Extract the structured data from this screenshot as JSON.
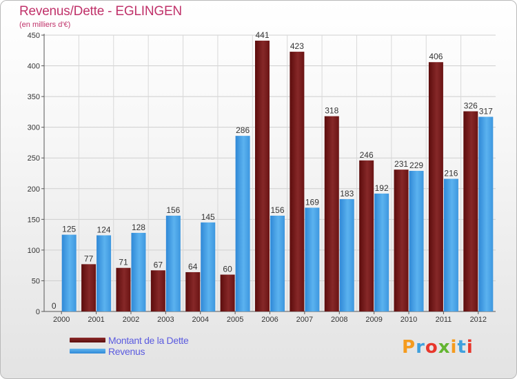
{
  "chart_data": {
    "type": "bar",
    "title": "Revenus/Dette - EGLINGEN",
    "subtitle": "(en milliers d'€)",
    "categories": [
      "2000",
      "2001",
      "2002",
      "2003",
      "2004",
      "2005",
      "2006",
      "2007",
      "2008",
      "2009",
      "2010",
      "2011",
      "2012"
    ],
    "series": [
      {
        "name": "Montant de la Dette",
        "color": "#7a1c1c",
        "values": [
          0,
          77,
          71,
          67,
          64,
          60,
          441,
          423,
          318,
          246,
          231,
          406,
          326
        ]
      },
      {
        "name": "Revenus",
        "color": "#3f9be3",
        "values": [
          125,
          124,
          128,
          156,
          145,
          286,
          156,
          169,
          183,
          192,
          229,
          216,
          317
        ]
      }
    ],
    "ylim": [
      0,
      450
    ],
    "yticks": [
      0,
      50,
      100,
      150,
      200,
      250,
      300,
      350,
      400,
      450
    ],
    "grid": true,
    "legend_position": "bottom-left"
  },
  "brand": {
    "logo_text": "Proxiti",
    "logo_colors": [
      "#f59b1e",
      "#3fa0dd",
      "#e8372c",
      "#63b531",
      "#f59b1e",
      "#3fa0dd",
      "#e8372c"
    ]
  }
}
